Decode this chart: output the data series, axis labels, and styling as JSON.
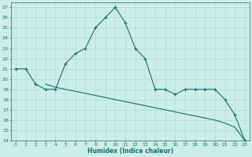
{
  "xlabel": "Humidex (Indice chaleur)",
  "bg_color": "#cceee8",
  "grid_color": "#aaddcc",
  "line_color": "#1a6b6b",
  "x_main": [
    0,
    1,
    2,
    3,
    4,
    5,
    6,
    7,
    8,
    9,
    10,
    11,
    12,
    13,
    14,
    15,
    16,
    17,
    18,
    19,
    20,
    21,
    22,
    23
  ],
  "y_main": [
    21,
    21,
    19.5,
    19,
    19,
    21.5,
    22.5,
    23,
    25,
    26,
    27,
    25.5,
    23,
    22,
    19,
    19,
    18.5,
    19,
    19,
    19,
    19,
    18,
    16.5,
    14
  ],
  "x_flat": [
    3,
    4,
    5,
    6,
    7,
    8,
    9,
    10,
    11,
    12,
    13,
    14,
    15,
    16,
    17,
    18,
    19,
    20,
    21,
    22,
    23
  ],
  "y_flat": [
    19.5,
    19.2,
    19.0,
    18.8,
    18.6,
    18.4,
    18.2,
    18.0,
    17.8,
    17.6,
    17.4,
    17.2,
    17.0,
    16.8,
    16.6,
    16.4,
    16.2,
    16.0,
    15.7,
    15.3,
    14.0
  ],
  "ylim": [
    14,
    27.5
  ],
  "xlim": [
    -0.5,
    23.5
  ],
  "yticks": [
    14,
    15,
    16,
    17,
    18,
    19,
    20,
    21,
    22,
    23,
    24,
    25,
    26,
    27
  ],
  "xticks": [
    0,
    1,
    2,
    3,
    4,
    5,
    6,
    7,
    8,
    9,
    10,
    11,
    12,
    13,
    14,
    15,
    16,
    17,
    18,
    19,
    20,
    21,
    22,
    23
  ],
  "tick_fontsize": 4.5,
  "xlabel_fontsize": 5.5
}
